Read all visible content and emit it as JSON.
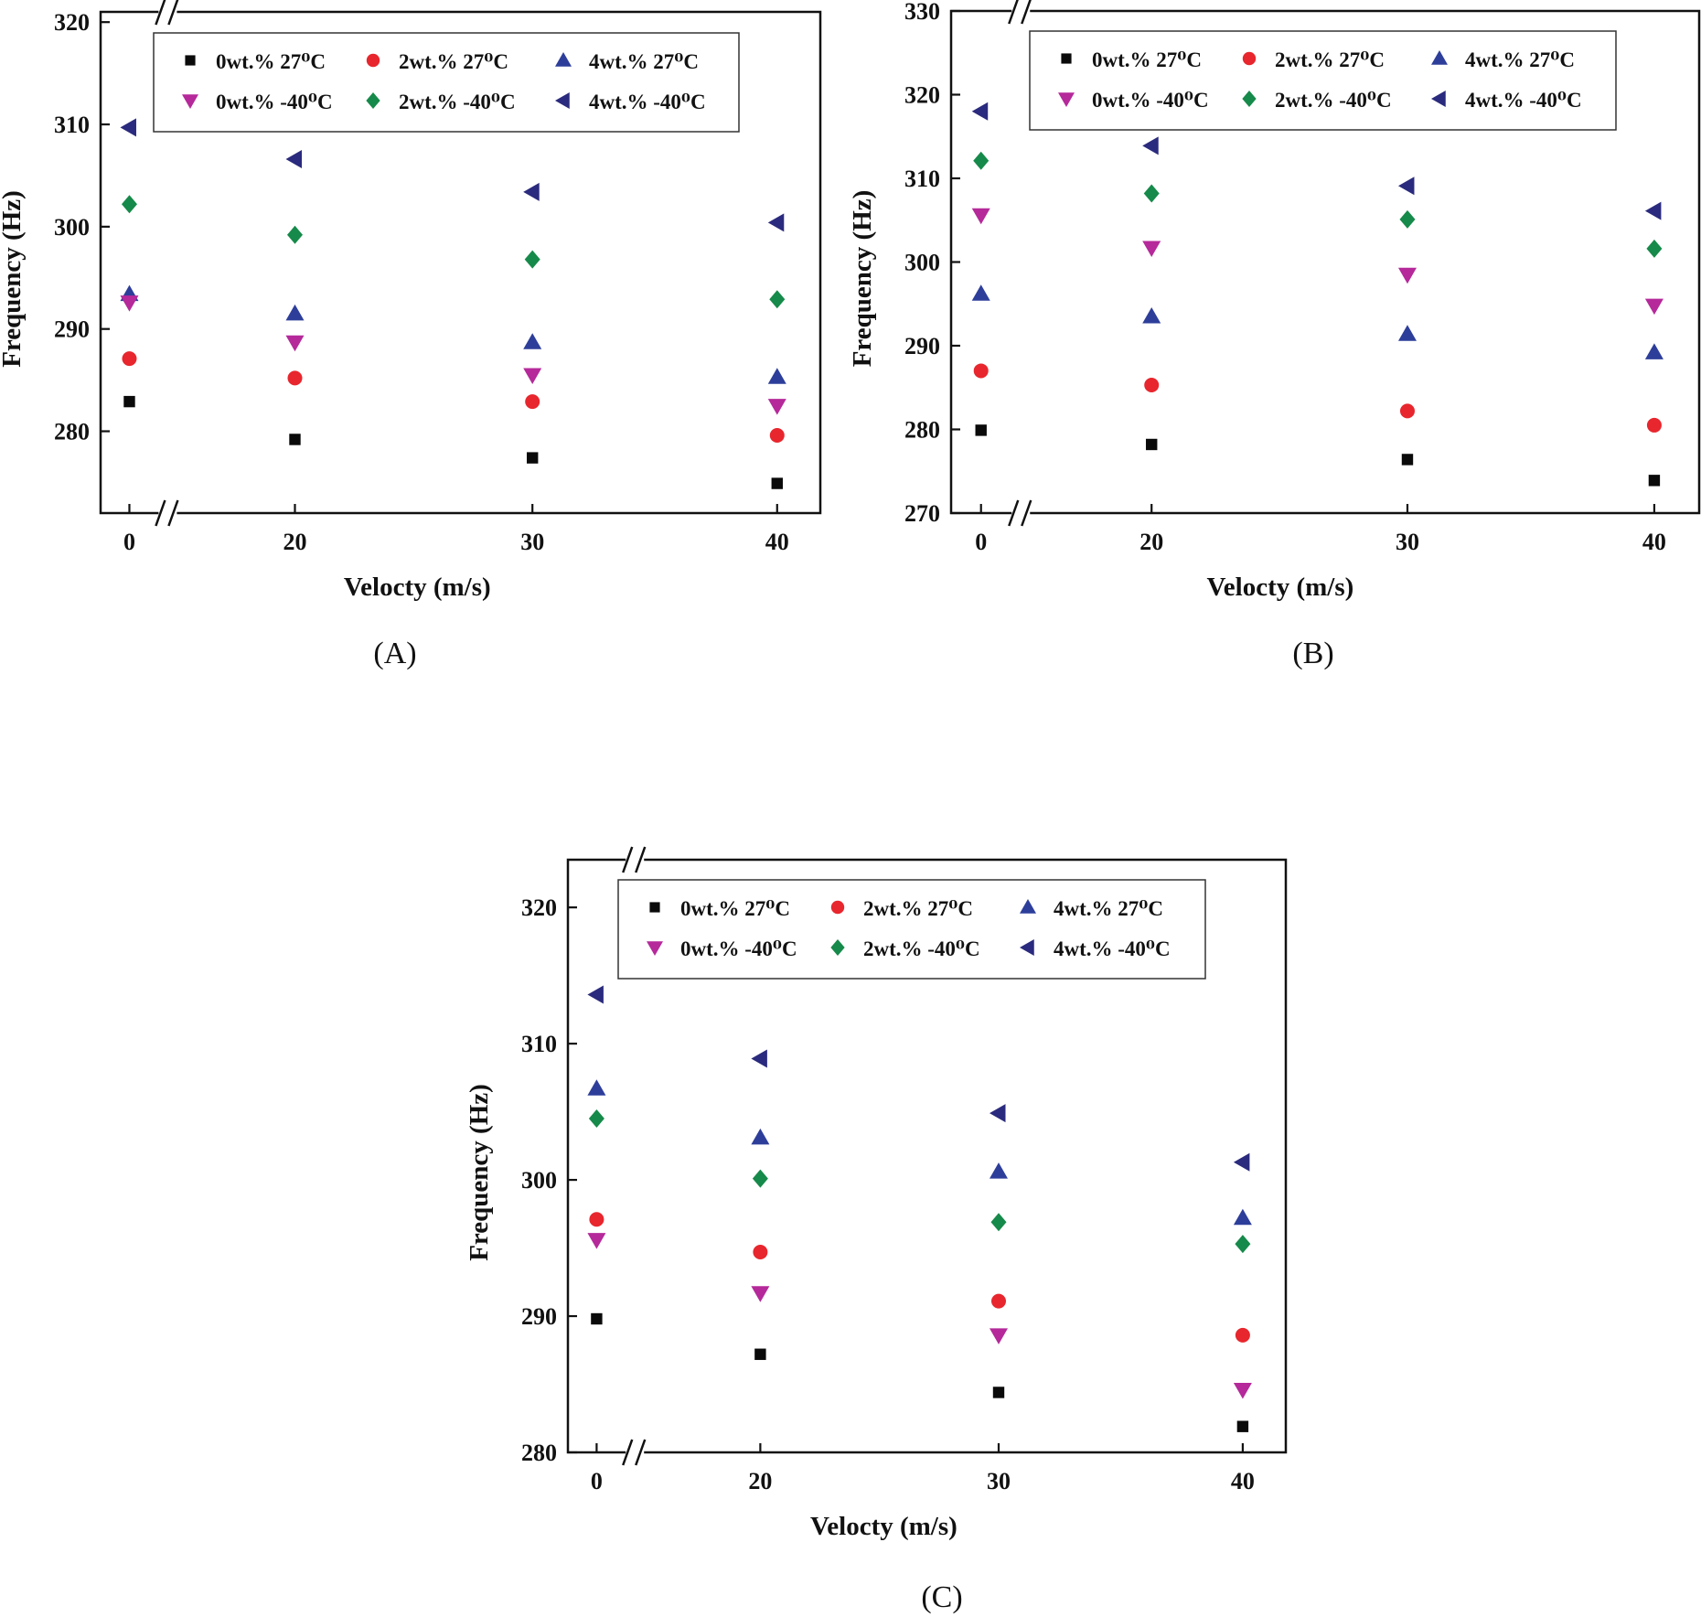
{
  "chart_data": [
    {
      "type": "scatter",
      "panel": "A",
      "caption": "(A)",
      "xlabel": "Velocty (m/s)",
      "ylabel": "Frequency (Hz)",
      "categories": [
        "0",
        "20",
        "30",
        "40"
      ],
      "ylim": [
        272,
        321
      ],
      "yticks": [
        280,
        290,
        300,
        310,
        320
      ],
      "axis_break": true,
      "legend": "top",
      "series": [
        {
          "name": "0wt.% 27⁰C",
          "values": [
            282.9,
            279.2,
            277.4,
            274.9
          ]
        },
        {
          "name": "2wt.% 27⁰C",
          "values": [
            287.1,
            285.2,
            282.9,
            279.6
          ]
        },
        {
          "name": "4wt.% 27⁰C",
          "values": [
            293.4,
            291.5,
            288.7,
            285.3
          ]
        },
        {
          "name": "0wt.% -40⁰C",
          "values": [
            292.6,
            288.7,
            285.5,
            282.5
          ]
        },
        {
          "name": "2wt.% -40⁰C",
          "values": [
            302.2,
            299.2,
            296.8,
            292.9
          ]
        },
        {
          "name": "4wt.% -40⁰C",
          "values": [
            309.7,
            306.6,
            303.4,
            300.4
          ]
        }
      ]
    },
    {
      "type": "scatter",
      "panel": "B",
      "caption": "(B)",
      "xlabel": "Velocty (m/s)",
      "ylabel": "Frequency (Hz)",
      "categories": [
        "0",
        "20",
        "30",
        "40"
      ],
      "ylim": [
        270,
        330
      ],
      "yticks": [
        270,
        280,
        290,
        300,
        310,
        320,
        330
      ],
      "axis_break": true,
      "legend": "top",
      "series": [
        {
          "name": "0wt.% 27⁰C",
          "values": [
            279.9,
            278.2,
            276.4,
            273.9
          ]
        },
        {
          "name": "2wt.% 27⁰C",
          "values": [
            287.0,
            285.3,
            282.2,
            280.5
          ]
        },
        {
          "name": "4wt.% 27⁰C",
          "values": [
            296.2,
            293.5,
            291.4,
            289.2
          ]
        },
        {
          "name": "0wt.% -40⁰C",
          "values": [
            305.6,
            301.7,
            298.5,
            294.8
          ]
        },
        {
          "name": "2wt.% -40⁰C",
          "values": [
            312.1,
            308.2,
            305.1,
            301.6
          ]
        },
        {
          "name": "4wt.% -40⁰C",
          "values": [
            318.0,
            313.9,
            309.1,
            306.1
          ]
        }
      ]
    },
    {
      "type": "scatter",
      "panel": "C",
      "caption": "(C)",
      "xlabel": "Velocty (m/s)",
      "ylabel": "Frequency (Hz)",
      "categories": [
        "0",
        "20",
        "30",
        "40"
      ],
      "ylim": [
        280,
        323.5
      ],
      "yticks": [
        280,
        290,
        300,
        310,
        320
      ],
      "axis_break": true,
      "legend": "top",
      "series": [
        {
          "name": "0wt.% 27⁰C",
          "values": [
            289.8,
            287.2,
            284.4,
            281.9
          ]
        },
        {
          "name": "2wt.% 27⁰C",
          "values": [
            297.1,
            294.7,
            291.1,
            288.6
          ]
        },
        {
          "name": "4wt.% 27⁰C",
          "values": [
            306.7,
            303.1,
            300.6,
            297.2
          ]
        },
        {
          "name": "0wt.% -40⁰C",
          "values": [
            295.6,
            291.7,
            288.6,
            284.6
          ]
        },
        {
          "name": "2wt.% -40⁰C",
          "values": [
            304.5,
            300.1,
            296.9,
            295.3
          ]
        },
        {
          "name": "4wt.% -40⁰C",
          "values": [
            313.6,
            308.9,
            304.9,
            301.3
          ]
        }
      ]
    }
  ],
  "marker_styles": [
    {
      "shape": "square",
      "color": "#0a0a0a"
    },
    {
      "shape": "circle",
      "color": "#e8262d"
    },
    {
      "shape": "triangle-up",
      "color": "#2d3e9a"
    },
    {
      "shape": "triangle-down",
      "color": "#b5299a"
    },
    {
      "shape": "diamond",
      "color": "#168a4a"
    },
    {
      "shape": "triangle-left",
      "color": "#2a2a7e"
    }
  ]
}
